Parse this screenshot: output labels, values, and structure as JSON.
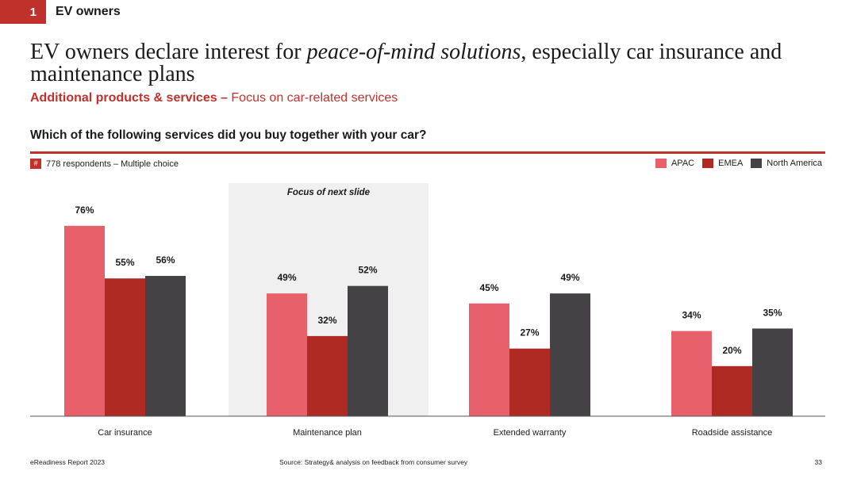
{
  "header": {
    "section_number": "1",
    "section_label": "EV owners"
  },
  "headline": {
    "part1": "EV owners declare interest for ",
    "emphasis": "peace-of-mind solutions",
    "part2": ", especially car insurance and maintenance plans"
  },
  "subtitle": {
    "bold": "Additional products & services – ",
    "normal": "Focus on car-related services"
  },
  "question": "Which of the following services did you buy together with your car?",
  "respondents": {
    "hash": "#",
    "text": "778 respondents – Multiple choice"
  },
  "highlight": {
    "label": "Focus of next slide",
    "category_index": 1
  },
  "chart_data": {
    "type": "bar",
    "categories": [
      "Car insurance",
      "Maintenance plan",
      "Extended warranty",
      "Roadside assistance"
    ],
    "series": [
      {
        "name": "APAC",
        "values": [
          76,
          49,
          45,
          34
        ],
        "color": "#e8606a"
      },
      {
        "name": "EMEA",
        "values": [
          55,
          32,
          27,
          20
        ],
        "color": "#b02a24"
      },
      {
        "name": "North America",
        "values": [
          56,
          52,
          49,
          35
        ],
        "color": "#444244"
      }
    ],
    "value_suffix": "%",
    "ylim": [
      0,
      100
    ],
    "grid": false,
    "legend": "top-right"
  },
  "footer": {
    "report": "eReadiness Report 2023",
    "source": "Source: Strategy& analysis on feedback from consumer survey",
    "page": "33"
  }
}
